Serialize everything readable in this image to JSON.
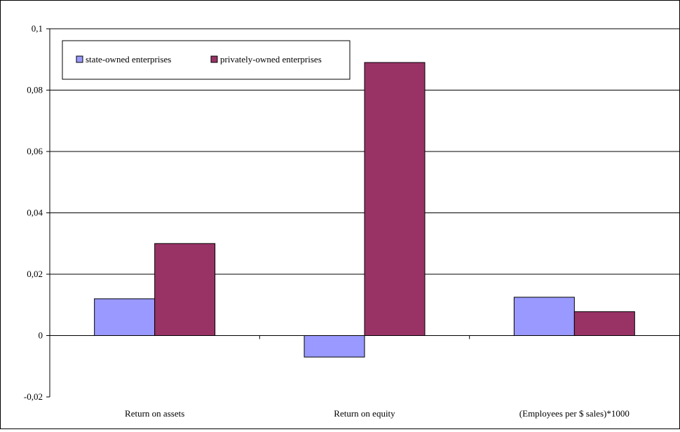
{
  "chart_data": {
    "type": "bar",
    "categories": [
      "Return on assets",
      "Return on equity",
      "(Employees per $ sales)*1000"
    ],
    "series": [
      {
        "name": "state-owned enterprises",
        "color": "#9999FF",
        "values": [
          0.012,
          -0.007,
          0.0125
        ]
      },
      {
        "name": "privately-owned enterprises",
        "color": "#993366",
        "values": [
          0.03,
          0.089,
          0.0078
        ]
      }
    ],
    "ylim": [
      -0.02,
      0.1
    ],
    "yticks": [
      "-0,02",
      "0",
      "0,02",
      "0,04",
      "0,06",
      "0,08",
      "0,1"
    ],
    "ytick_values": [
      -0.02,
      0,
      0.02,
      0.04,
      0.06,
      0.08,
      0.1
    ],
    "grid": true,
    "legend_position": "top-left",
    "title": "",
    "xlabel": "",
    "ylabel": ""
  }
}
